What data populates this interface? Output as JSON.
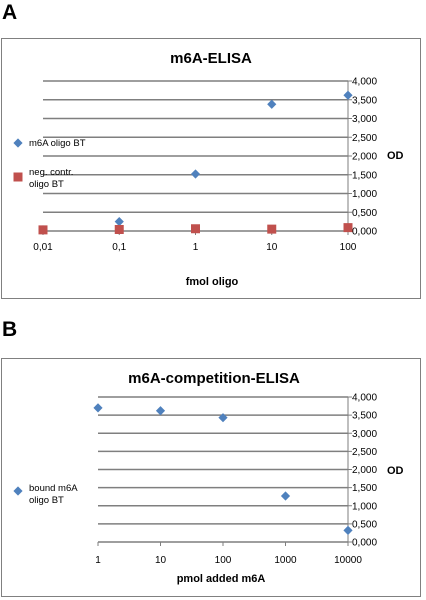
{
  "panels": [
    {
      "letter": "A"
    },
    {
      "letter": "B"
    }
  ],
  "colors": {
    "series_diamond": "#4f81bd",
    "series_square": "#c0504d",
    "grid": "#7f7f7f",
    "frame": "#808080"
  },
  "chart_data": [
    {
      "type": "scatter",
      "title": "m6A-ELISA",
      "xlabel": "fmol oligo",
      "ylabel": "OD",
      "x_scale": "log",
      "x_ticks": [
        "0,01",
        "0,1",
        "1",
        "10",
        "100"
      ],
      "x_tick_values": [
        0.01,
        0.1,
        1,
        10,
        100
      ],
      "ylim": [
        0,
        4
      ],
      "y_ticks": [
        "0,000",
        "0,500",
        "1,000",
        "1,500",
        "2,000",
        "2,500",
        "3,000",
        "3,500",
        "4,000"
      ],
      "grid": true,
      "legend_position": "left",
      "series": [
        {
          "name": "m6A oligo  BT",
          "marker": "diamond",
          "color": "#4f81bd",
          "x": [
            0.01,
            0.1,
            1,
            10,
            100
          ],
          "y": [
            0.03,
            0.25,
            1.52,
            3.38,
            3.62
          ]
        },
        {
          "name": "neg. contr. oligo BT",
          "marker": "square",
          "color": "#c0504d",
          "x": [
            0.01,
            0.1,
            1,
            10,
            100
          ],
          "y": [
            0.03,
            0.04,
            0.06,
            0.05,
            0.09
          ]
        }
      ]
    },
    {
      "type": "scatter",
      "title": "m6A-competition-ELISA",
      "xlabel": "pmol added m6A",
      "ylabel": "OD",
      "x_scale": "log",
      "x_ticks": [
        "1",
        "10",
        "100",
        "1000",
        "10000"
      ],
      "x_tick_values": [
        1,
        10,
        100,
        1000,
        10000
      ],
      "ylim": [
        0,
        4
      ],
      "y_ticks": [
        "0,000",
        "0,500",
        "1,000",
        "1,500",
        "2,000",
        "2,500",
        "3,000",
        "3,500",
        "4,000"
      ],
      "grid": true,
      "legend_position": "left",
      "series": [
        {
          "name": "bound m6A oligo BT",
          "marker": "diamond",
          "color": "#4f81bd",
          "x": [
            1,
            10,
            100,
            1000,
            10000
          ],
          "y": [
            3.7,
            3.62,
            3.43,
            1.27,
            0.32
          ]
        }
      ]
    }
  ]
}
